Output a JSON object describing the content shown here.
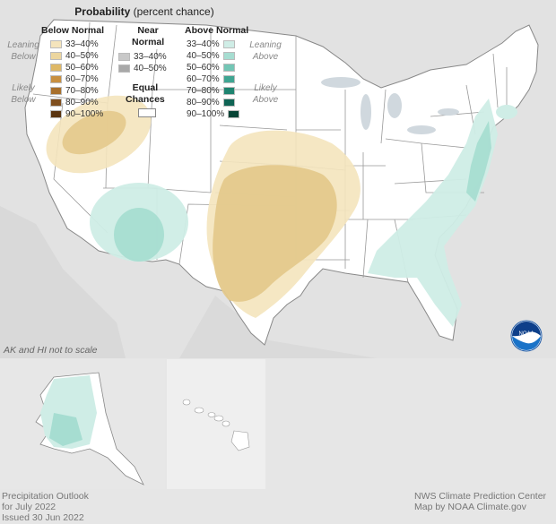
{
  "map": {
    "note": "AK and HI not to scale",
    "logo_text": "NOAA"
  },
  "legend": {
    "title_bold": "Probability",
    "title_rest": "(percent chance)",
    "below_header": "Below Normal",
    "near_header_line1": "Near",
    "near_header_line2": "Normal",
    "above_header": "Above Normal",
    "leaning_below": [
      "Leaning",
      "Below"
    ],
    "likely_below": [
      "Likely",
      "Below"
    ],
    "leaning_above": [
      "Leaning",
      "Above"
    ],
    "likely_above": [
      "Likely",
      "Above"
    ],
    "below_rows": [
      "33–40%",
      "40–50%",
      "50–60%",
      "60–70%",
      "70–80%",
      "80–90%",
      "90–100%"
    ],
    "near_rows": [
      "33–40%",
      "40–50%"
    ],
    "above_rows": [
      "33–40%",
      "40–50%",
      "50–60%",
      "60–70%",
      "70–80%",
      "80–90%",
      "90–100%"
    ],
    "equal_chances_line1": "Equal",
    "equal_chances_line2": "Chances",
    "colors": {
      "below": [
        "#f4e4bc",
        "#ecd69f",
        "#deb867",
        "#c89040",
        "#a8702c",
        "#7f4e1e",
        "#5a3410"
      ],
      "near": [
        "#c8c8c8",
        "#a8a8a8"
      ],
      "above": [
        "#cfede6",
        "#a6ddd1",
        "#73c6b5",
        "#3fa592",
        "#1f8470",
        "#0f6454",
        "#064335"
      ],
      "equal": "#ffffff"
    }
  },
  "footer": {
    "left_line1": "Precipitation Outlook",
    "left_line2": "for July 2022",
    "left_line3": "Issued 30 Jun 2022",
    "right_line1": "NWS Climate Prediction Center",
    "right_line2": "Map by NOAA Climate.gov"
  }
}
